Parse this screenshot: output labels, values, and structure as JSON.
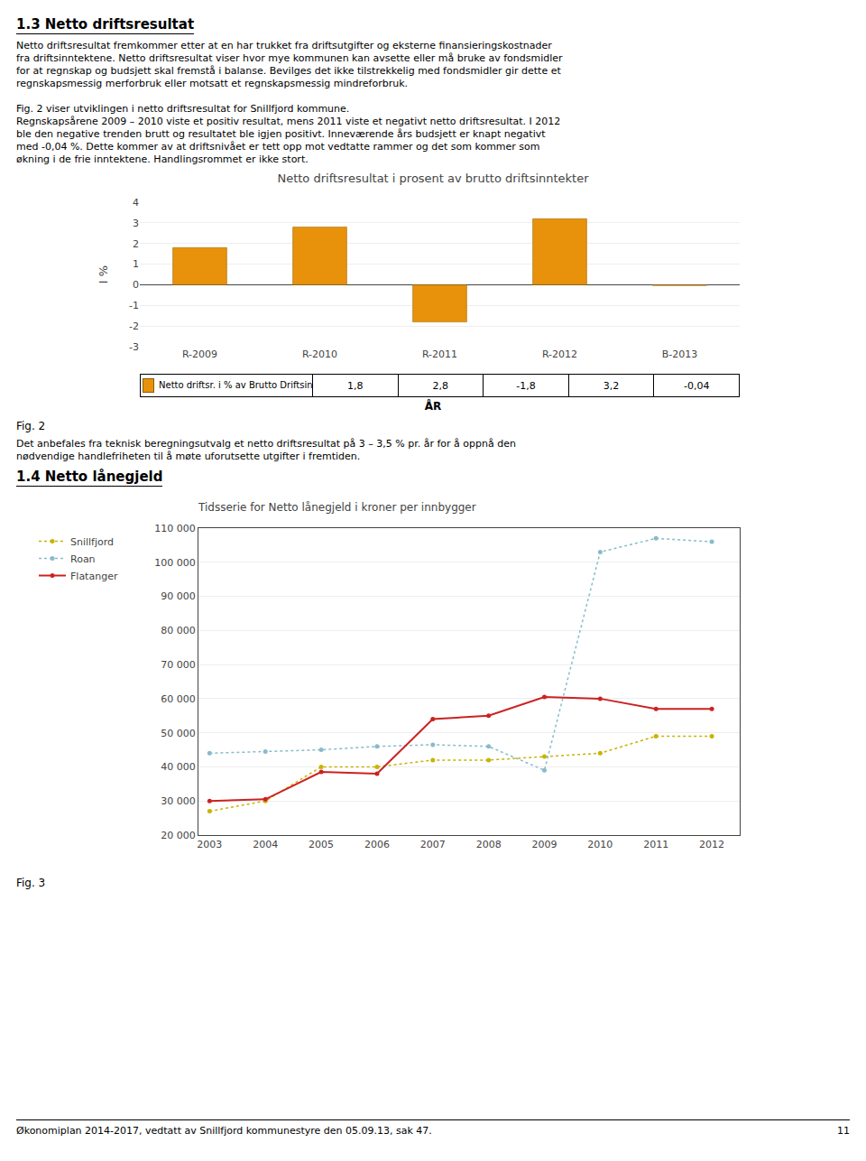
{
  "annotations": [
    "1.3 Netto driftsresultat",
    "Netto driftsresultat fremkommer etter at en har trukket fra driftsutgifter og eksterne finansieringskostnader",
    "fra driftsinntektene. Netto driftsresultat viser hvor mye kommunen kan avsette eller må bruke av fondsmidler",
    "for at regnskap og budsjett skal fremstå i balanse. Bevilges det ikke tilstrekkelig med fondsmidler gir dette et",
    "regnskapsmessig merforbruk eller motsatt et regnskapsmessig mindreforbruk.",
    "Fig. 2 viser utviklingen i netto driftsresultat for Snillfjord kommune.",
    "Regnskapsårene 2009 – 2010 viste et positiv resultat, mens 2011 viste et negativt netto driftsresultat. I 2012",
    "ble den negative trenden brutt og resultatet ble igjen positivt. Inneværende års budsjett er knapt negativt",
    "med -0,04 %. Dette kommer av at driftsnivået er tett opp mot vedtatte rammer og det som kommer som",
    "økning i de frie inntektene. Handlingsrommet er ikke stort.",
    "Fig. 2",
    "Det anbefales fra teknisk beregningsutvalg et netto driftsresultat på 3 – 3,5 % pr. år for å oppnå den",
    "nødvendige handlefriheten til å møte uforutsette utgifter i fremtiden.",
    "1.4 Netto lånegjeld",
    "Fig. 3",
    "Økonomiplan 2014-2017, vedtatt av Snillfjord kommunestyre den 05.09.13, sak 47.",
    "11"
  ],
  "chart_data": [
    {
      "type": "bar",
      "title": "Netto driftsresultat i prosent av brutto driftsinntekter",
      "xlabel": "ÅR",
      "ylabel": "I %",
      "categories": [
        "R-2009",
        "R-2010",
        "R-2011",
        "R-2012",
        "B-2013"
      ],
      "series": [
        {
          "name": "Netto driftsr. i % av Brutto Driftsinntekter",
          "color": "#E8910A",
          "values": [
            1.8,
            2.8,
            -1.8,
            3.2,
            -0.04
          ],
          "value_labels": [
            "1,8",
            "2,8",
            "-1,8",
            "3,2",
            "-0,04"
          ]
        }
      ],
      "ylim": [
        -3,
        4
      ],
      "yticks": [
        -3,
        -2,
        -1,
        0,
        1,
        2,
        3,
        4
      ],
      "grid": true
    },
    {
      "type": "line",
      "title": "Tidsserie for Netto lånegjeld i kroner per innbygger",
      "x": [
        2003,
        2004,
        2005,
        2006,
        2007,
        2008,
        2009,
        2010,
        2011,
        2012
      ],
      "xlim": [
        2002.8,
        2012.5
      ],
      "xticks": [
        2003,
        2004,
        2005,
        2006,
        2007,
        2008,
        2009,
        2010,
        2011,
        2012
      ],
      "ylim": [
        20000,
        110000
      ],
      "yticks": [
        {
          "value": 20000,
          "label": "20 000"
        },
        {
          "value": 30000,
          "label": "30 000"
        },
        {
          "value": 40000,
          "label": "40 000"
        },
        {
          "value": 50000,
          "label": "50 000"
        },
        {
          "value": 60000,
          "label": "60 000"
        },
        {
          "value": 70000,
          "label": "70 000"
        },
        {
          "value": 80000,
          "label": "80 000"
        },
        {
          "value": 90000,
          "label": "90 000"
        },
        {
          "value": 100000,
          "label": "100 000"
        },
        {
          "value": 110000,
          "label": "110 000"
        }
      ],
      "grid": true,
      "legend": "upper left",
      "series": [
        {
          "name": "Snillfjord",
          "color": "#c8b400",
          "line_style": "dotted",
          "marker": "circle",
          "values": [
            27000,
            30000,
            40000,
            40000,
            42000,
            42000,
            43000,
            44000,
            49000,
            49000
          ]
        },
        {
          "name": "Roan",
          "color": "#88bbcc",
          "line_style": "dotted",
          "marker": "circle",
          "values": [
            44000,
            44500,
            45000,
            46000,
            46500,
            46000,
            39000,
            103000,
            107000,
            106000
          ]
        },
        {
          "name": "Flatanger",
          "color": "#cc2222",
          "line_style": "solid",
          "marker": "circle",
          "values": [
            30000,
            30500,
            38500,
            38000,
            54000,
            55000,
            60500,
            60000,
            57000,
            57000
          ]
        }
      ]
    }
  ]
}
